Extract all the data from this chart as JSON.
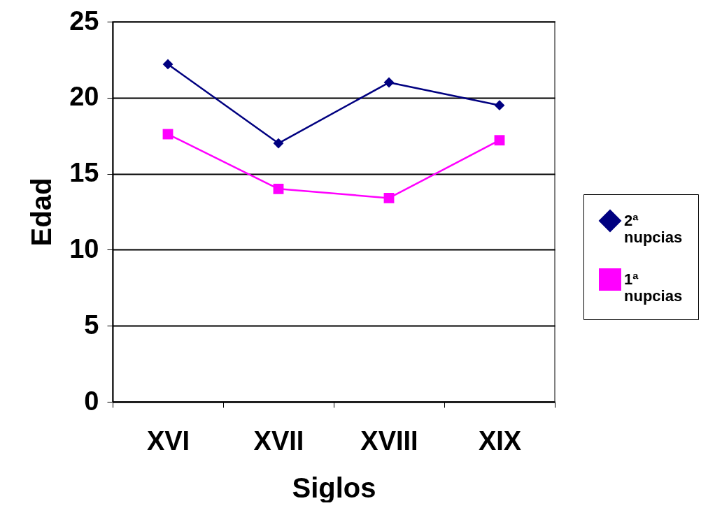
{
  "chart_data": {
    "type": "line",
    "xlabel": "Siglos",
    "ylabel": "Edad",
    "categories": [
      "XVI",
      "XVII",
      "XVIII",
      "XIX"
    ],
    "series": [
      {
        "name": "2ª nupcias",
        "color": "#000080",
        "marker": "diamond",
        "values": [
          22.2,
          17.0,
          21.0,
          19.5
        ]
      },
      {
        "name": "1ª nupcias",
        "color": "#ff00ff",
        "marker": "square",
        "values": [
          17.6,
          14.0,
          13.4,
          17.2
        ]
      }
    ],
    "ylim": [
      0,
      25
    ],
    "yticks": [
      0,
      5,
      10,
      15,
      20,
      25
    ],
    "grid": "y",
    "legend": "right",
    "line_style": "solid"
  }
}
